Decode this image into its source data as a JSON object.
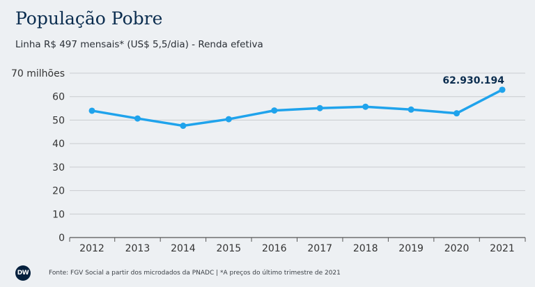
{
  "title": "População Pobre",
  "subtitle": "Linha R$ 497 mensais* (US$ 5,5/dia) - Renda efetiva",
  "source": "Fonte: FGV Social a partir dos microdados da PNADC | *A preços do último trimestre de 2021",
  "logo_text": "DW",
  "colors": {
    "line": "#1fa3ec",
    "grid": "#c9ccd0",
    "text": "#333333",
    "annotation": "#0b2d4f"
  },
  "chart_data": {
    "type": "line",
    "title": "População Pobre",
    "subtitle": "Linha R$ 497 mensais* (US$ 5,5/dia) - Renda efetiva",
    "xlabel": "",
    "ylabel": "",
    "categories": [
      "2012",
      "2013",
      "2014",
      "2015",
      "2016",
      "2017",
      "2018",
      "2019",
      "2020",
      "2021"
    ],
    "values": [
      54.0,
      50.7,
      47.6,
      50.4,
      54.1,
      55.1,
      55.7,
      54.5,
      52.9,
      62.93
    ],
    "ylim": [
      0,
      70
    ],
    "yticks": [
      0,
      10,
      20,
      30,
      40,
      50,
      60,
      70
    ],
    "ytick_labels": [
      "0",
      "10",
      "20",
      "30",
      "40",
      "50",
      "60",
      "70 milhões"
    ],
    "grid": true,
    "annotation": {
      "category": "2021",
      "label": "62.930.194"
    }
  }
}
